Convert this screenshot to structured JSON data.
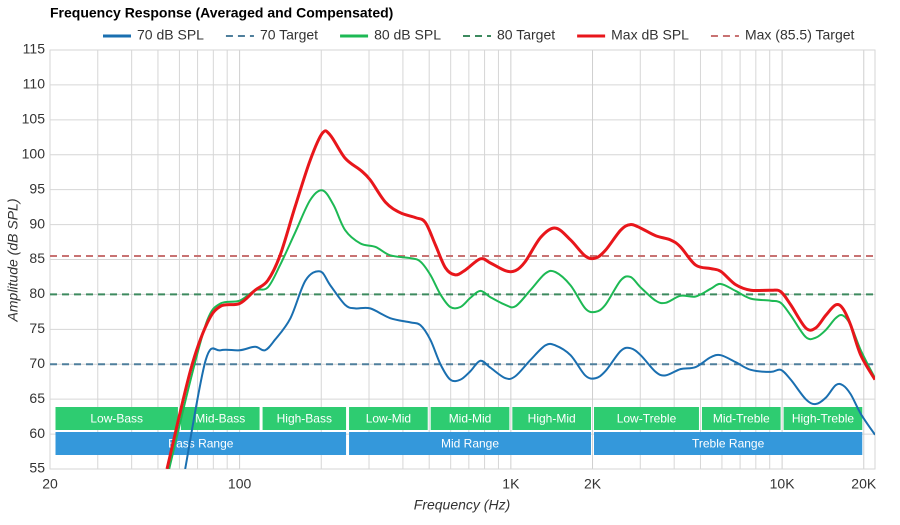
{
  "chart_data": {
    "type": "line",
    "title": "Frequency Response (Averaged and Compensated)",
    "xlabel": "Frequency (Hz)",
    "ylabel": "Amplitude (dB SPL)",
    "xscale": "log",
    "xlim": [
      20,
      22000
    ],
    "ylim": [
      55,
      115
    ],
    "yticks": [
      55,
      60,
      65,
      70,
      75,
      80,
      85,
      90,
      95,
      100,
      105,
      110,
      115
    ],
    "xticks": [
      20,
      100,
      {
        "value": 1000,
        "label": "1K"
      },
      {
        "value": 2000,
        "label": "2K"
      },
      {
        "value": 10000,
        "label": "10K"
      },
      {
        "value": 20000,
        "label": "20K"
      }
    ],
    "xminorticks": [
      30,
      40,
      50,
      60,
      70,
      80,
      90,
      200,
      300,
      400,
      500,
      600,
      700,
      800,
      900,
      3000,
      4000,
      5000,
      6000,
      7000,
      8000,
      9000
    ],
    "grid": true,
    "series": [
      {
        "name": "70 dB SPL",
        "color": "#1a6fb0",
        "x": [
          63,
          75,
          85,
          100,
          114,
          124,
          135,
          154,
          175,
          198,
          216,
          245,
          267,
          303,
          359,
          426,
          464,
          505,
          550,
          598,
          652,
          709,
          772,
          841,
          955,
          1040,
          1180,
          1340,
          1460,
          1660,
          1880,
          2050,
          2230,
          2540,
          2760,
          3010,
          3420,
          3720,
          4220,
          4800,
          5450,
          5940,
          6740,
          7660,
          9080,
          9880,
          10760,
          12220,
          13300,
          14480,
          15760,
          16730,
          17900,
          19500,
          22000
        ],
        "values": [
          55,
          70.6,
          72,
          72,
          72.5,
          72,
          73.5,
          76.6,
          82,
          83.3,
          81.3,
          78.5,
          78,
          78,
          76.6,
          76,
          75.6,
          73.5,
          70,
          67.8,
          67.8,
          69,
          70.5,
          69.5,
          68,
          68.3,
          70.6,
          72.7,
          72.7,
          71.3,
          68.4,
          68,
          69,
          71.9,
          72.3,
          71.3,
          68.9,
          68.4,
          69.3,
          69.6,
          71,
          71.3,
          70.3,
          69.2,
          68.9,
          69.2,
          67.8,
          65,
          64.3,
          65.2,
          67,
          67,
          65.7,
          62.9,
          59.9
        ]
      },
      {
        "name": "70 Target",
        "color": "#4f7f9c",
        "dash": true,
        "value": 70
      },
      {
        "name": "80 dB SPL",
        "color": "#1db954",
        "x": [
          55,
          66,
          76,
          85,
          100,
          114,
          127,
          141,
          160,
          182,
          202,
          222,
          245,
          279,
          317,
          359,
          426,
          464,
          505,
          550,
          598,
          652,
          709,
          772,
          841,
          955,
          1040,
          1180,
          1340,
          1460,
          1660,
          1880,
          2050,
          2230,
          2540,
          2760,
          3010,
          3420,
          3720,
          4220,
          4800,
          5450,
          5940,
          6740,
          7660,
          9080,
          9880,
          10760,
          12220,
          13300,
          14480,
          15760,
          16730,
          17900,
          19500,
          22000
        ],
        "values": [
          55,
          67.8,
          76.3,
          78.7,
          79.1,
          80.6,
          81,
          84.2,
          88.8,
          93.5,
          94.9,
          92.8,
          89.2,
          87.3,
          86.8,
          85.6,
          85.2,
          84.7,
          82.8,
          80,
          78.2,
          78.2,
          79.5,
          80.5,
          79.6,
          78.5,
          78.3,
          80.6,
          83,
          83.2,
          81.3,
          78,
          77.5,
          78.5,
          82,
          82.5,
          81,
          79.1,
          78.8,
          79.8,
          79.7,
          80.8,
          81.5,
          80.5,
          79.4,
          79.1,
          78.8,
          77,
          73.9,
          73.8,
          74.9,
          76.6,
          77,
          75.6,
          72,
          68
        ]
      },
      {
        "name": "80 Target",
        "color": "#3d8a5f",
        "dash": true,
        "value": 80
      },
      {
        "name": "Max dB SPL",
        "color": "#e8161b",
        "x": [
          54,
          66,
          76,
          85,
          100,
          114,
          127,
          141,
          160,
          182,
          202,
          216,
          245,
          279,
          303,
          345,
          391,
          445,
          484,
          527,
          574,
          624,
          680,
          772,
          841,
          955,
          1040,
          1130,
          1290,
          1460,
          1660,
          1880,
          2050,
          2230,
          2540,
          2760,
          3010,
          3420,
          3880,
          4220,
          4800,
          5450,
          5940,
          6740,
          7660,
          9080,
          9880,
          10760,
          12220,
          13300,
          14480,
          15760,
          16730,
          17900,
          19500,
          22000
        ],
        "values": [
          55,
          69.2,
          75.9,
          78.3,
          78.7,
          80.6,
          82,
          85.6,
          92.5,
          99.2,
          103.1,
          102.8,
          99.5,
          97.8,
          96.4,
          93.2,
          91.7,
          91,
          90.3,
          87.1,
          83.8,
          82.8,
          83.5,
          85.1,
          84.5,
          83.4,
          83.4,
          84.7,
          88.2,
          89.5,
          87.8,
          85.5,
          85.2,
          86.3,
          89.2,
          90,
          89.5,
          88.4,
          87.8,
          86.8,
          84.2,
          83.7,
          83.3,
          81.4,
          80.6,
          80.6,
          80.4,
          78.5,
          75.2,
          75.2,
          77,
          78.5,
          78,
          75.6,
          71.3,
          67.8
        ]
      },
      {
        "name": "Max (85.5) Target",
        "color": "#c87272",
        "dash": true,
        "value": 85.5
      }
    ],
    "band_rows": [
      {
        "color": "#2ecc71",
        "bands": [
          {
            "label": "Low-Bass",
            "from": 20,
            "to": 60
          },
          {
            "label": "Mid-Bass",
            "from": 60,
            "to": 120
          },
          {
            "label": "High-Bass",
            "from": 120,
            "to": 250
          },
          {
            "label": "Low-Mid",
            "from": 250,
            "to": 500
          },
          {
            "label": "Mid-Mid",
            "from": 500,
            "to": 1000
          },
          {
            "label": "High-Mid",
            "from": 1000,
            "to": 2000
          },
          {
            "label": "Low-Treble",
            "from": 2000,
            "to": 5000
          },
          {
            "label": "Mid-Treble",
            "from": 5000,
            "to": 10000
          },
          {
            "label": "High-Treble",
            "from": 10000,
            "to": 20000
          }
        ]
      },
      {
        "color": "#3498db",
        "bands": [
          {
            "label": "Bass Range",
            "from": 20,
            "to": 250
          },
          {
            "label": "Mid Range",
            "from": 250,
            "to": 2000
          },
          {
            "label": "Treble Range",
            "from": 2000,
            "to": 20000
          }
        ]
      }
    ]
  }
}
